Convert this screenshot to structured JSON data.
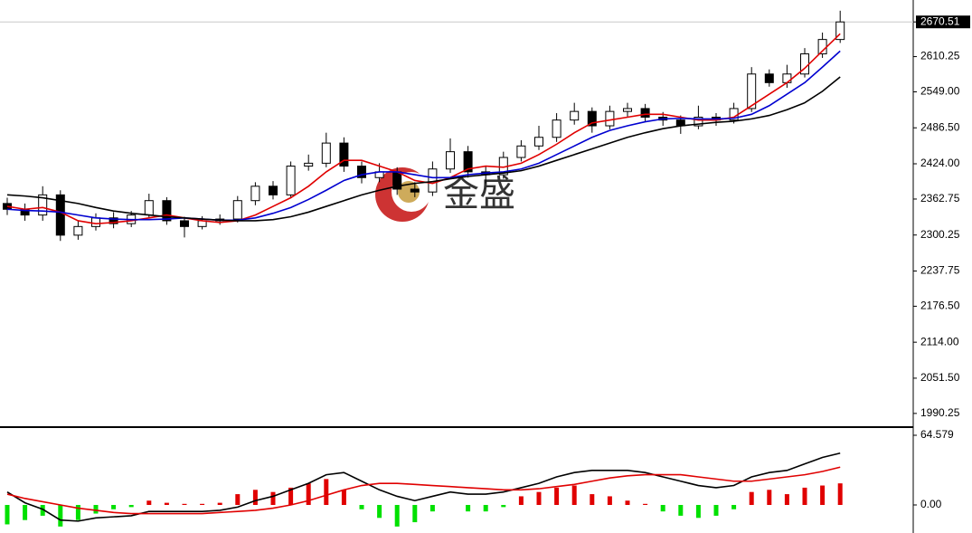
{
  "watermark": "金盛",
  "chart_data": [
    {
      "type": "candlestick",
      "open": [
        2355,
        2345,
        2335,
        2370,
        2300,
        2315,
        2330,
        2320,
        2335,
        2360,
        2325,
        2315,
        2325,
        2328,
        2360,
        2385,
        2370,
        2420,
        2425,
        2460,
        2420,
        2400,
        2410,
        2380,
        2375,
        2415,
        2445,
        2410,
        2405,
        2435,
        2455,
        2470,
        2500,
        2515,
        2490,
        2515,
        2520,
        2505,
        2500,
        2490,
        2505,
        2500,
        2520,
        2580,
        2565,
        2580,
        2615,
        2640
      ],
      "high": [
        2365,
        2355,
        2385,
        2378,
        2325,
        2338,
        2340,
        2342,
        2372,
        2366,
        2332,
        2333,
        2336,
        2368,
        2392,
        2394,
        2428,
        2440,
        2478,
        2470,
        2428,
        2425,
        2418,
        2392,
        2428,
        2468,
        2455,
        2420,
        2445,
        2465,
        2490,
        2512,
        2530,
        2522,
        2525,
        2530,
        2528,
        2514,
        2508,
        2525,
        2512,
        2530,
        2592,
        2588,
        2596,
        2625,
        2652,
        2690
      ],
      "low": [
        2335,
        2325,
        2325,
        2290,
        2292,
        2308,
        2312,
        2314,
        2330,
        2318,
        2296,
        2310,
        2318,
        2322,
        2352,
        2362,
        2364,
        2412,
        2418,
        2410,
        2390,
        2392,
        2370,
        2366,
        2368,
        2408,
        2400,
        2390,
        2398,
        2428,
        2448,
        2462,
        2492,
        2478,
        2484,
        2506,
        2498,
        2490,
        2476,
        2484,
        2490,
        2494,
        2514,
        2558,
        2556,
        2574,
        2608,
        2634
      ],
      "close": [
        2345,
        2335,
        2370,
        2300,
        2315,
        2330,
        2320,
        2335,
        2360,
        2325,
        2315,
        2325,
        2328,
        2360,
        2385,
        2370,
        2420,
        2425,
        2460,
        2420,
        2400,
        2410,
        2380,
        2375,
        2415,
        2445,
        2410,
        2405,
        2435,
        2455,
        2470,
        2500,
        2515,
        2490,
        2515,
        2520,
        2505,
        2500,
        2490,
        2505,
        2500,
        2520,
        2580,
        2565,
        2580,
        2615,
        2640,
        2670.51
      ],
      "up_color": "#ffffff",
      "down_color": "#000000",
      "lines": [
        {
          "color": "#e00000",
          "values": [
            2350,
            2345,
            2348,
            2340,
            2325,
            2320,
            2322,
            2325,
            2330,
            2335,
            2330,
            2325,
            2322,
            2325,
            2335,
            2350,
            2365,
            2385,
            2410,
            2430,
            2430,
            2420,
            2410,
            2395,
            2390,
            2400,
            2415,
            2420,
            2418,
            2425,
            2440,
            2458,
            2478,
            2495,
            2500,
            2505,
            2510,
            2510,
            2505,
            2500,
            2500,
            2505,
            2525,
            2545,
            2565,
            2590,
            2620,
            2650
          ]
        },
        {
          "color": "#0000d0",
          "values": [
            2345,
            2343,
            2342,
            2340,
            2335,
            2330,
            2328,
            2327,
            2327,
            2328,
            2330,
            2328,
            2326,
            2326,
            2330,
            2338,
            2348,
            2362,
            2378,
            2395,
            2405,
            2410,
            2410,
            2405,
            2400,
            2400,
            2405,
            2408,
            2410,
            2415,
            2425,
            2440,
            2455,
            2470,
            2482,
            2490,
            2497,
            2502,
            2503,
            2502,
            2502,
            2503,
            2510,
            2525,
            2545,
            2565,
            2592,
            2620
          ]
        },
        {
          "color": "#000000",
          "values": [
            2370,
            2368,
            2365,
            2360,
            2355,
            2348,
            2342,
            2338,
            2335,
            2332,
            2330,
            2328,
            2326,
            2325,
            2325,
            2327,
            2332,
            2340,
            2350,
            2360,
            2370,
            2378,
            2385,
            2390,
            2393,
            2398,
            2402,
            2405,
            2408,
            2412,
            2420,
            2430,
            2440,
            2450,
            2460,
            2470,
            2478,
            2485,
            2490,
            2493,
            2496,
            2498,
            2502,
            2508,
            2518,
            2530,
            2550,
            2575
          ]
        }
      ],
      "ylim": [
        1969.6,
        2708.6
      ],
      "yticks": [
        2670.51,
        2610.25,
        {
          "value": 2549,
          "label": "2549.00"
        },
        {
          "value": 2486.5,
          "label": "2486.50"
        },
        {
          "value": 2424,
          "label": "2424.00"
        },
        2362.75,
        2300.25,
        2237.75,
        {
          "value": 2176.5,
          "label": "2176.50"
        },
        {
          "value": 2114,
          "label": "2114.00"
        },
        {
          "value": 2051.5,
          "label": "2051.50"
        },
        1990.25
      ]
    },
    {
      "type": "macd",
      "histogram": [
        -18,
        -14,
        -10,
        -20,
        -14,
        -8,
        -4,
        -2,
        4,
        2,
        1,
        1,
        2,
        10,
        14,
        12,
        16,
        20,
        24,
        14,
        -4,
        -12,
        -20,
        -16,
        -6,
        0,
        -6,
        -6,
        -2,
        8,
        12,
        16,
        18,
        10,
        8,
        4,
        1,
        -6,
        -10,
        -12,
        -10,
        -4,
        12,
        14,
        10,
        16,
        18,
        20
      ],
      "up_color": "#e00000",
      "down_color": "#00e000",
      "lines": [
        {
          "color": "#000000",
          "values": [
            12,
            2,
            -4,
            -14,
            -15,
            -12,
            -11,
            -10,
            -6,
            -6,
            -6,
            -6,
            -5,
            -2,
            4,
            8,
            14,
            20,
            28,
            30,
            22,
            14,
            8,
            4,
            8,
            12,
            10,
            10,
            12,
            16,
            20,
            26,
            30,
            32,
            32,
            32,
            30,
            26,
            22,
            18,
            16,
            18,
            26,
            30,
            32,
            38,
            44,
            48
          ]
        },
        {
          "color": "#e00000",
          "values": [
            10,
            6,
            3,
            0,
            -3,
            -5,
            -7,
            -8,
            -8,
            -8,
            -8,
            -8,
            -7,
            -6,
            -5,
            -3,
            0,
            4,
            9,
            14,
            18,
            20,
            20,
            19,
            18,
            17,
            16,
            15,
            14,
            14,
            15,
            17,
            19,
            22,
            25,
            27,
            28,
            28,
            28,
            26,
            24,
            22,
            22,
            24,
            26,
            28,
            31,
            35
          ]
        }
      ],
      "ylim": [
        -26,
        69.6
      ],
      "yticks": [
        64.579,
        {
          "value": 0,
          "label": "0.00"
        }
      ]
    }
  ]
}
